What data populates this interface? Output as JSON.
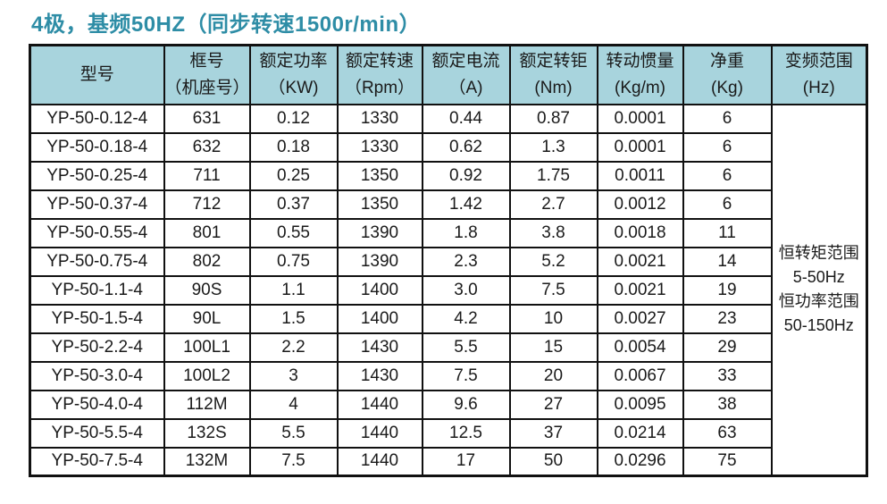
{
  "page_title": "4极，基频50HZ（同步转速1500r/min）",
  "colors": {
    "title_text": "#2e8da6",
    "header_background": "#a8d4dd",
    "table_border": "#111111",
    "body_text": "#1a1a1a"
  },
  "table": {
    "headers": [
      {
        "line1": "型号",
        "line2": ""
      },
      {
        "line1": "框号",
        "line2": "（机座号）"
      },
      {
        "line1": "额定功率",
        "line2": "（KW)"
      },
      {
        "line1": "额定转速",
        "line2": "（Rpm）"
      },
      {
        "line1": "额定电流",
        "line2": "（A)"
      },
      {
        "line1": "额定转钜",
        "line2": "(Nm)"
      },
      {
        "line1": "转动惯量",
        "line2": "(Kg/m)"
      },
      {
        "line1": "净重",
        "line2": "(Kg)"
      },
      {
        "line1": "变频范围",
        "line2": "(Hz)"
      }
    ],
    "rows": [
      [
        "YP-50-0.12-4",
        "631",
        "0.12",
        "1330",
        "0.44",
        "0.87",
        "0.0001",
        "6"
      ],
      [
        "YP-50-0.18-4",
        "632",
        "0.18",
        "1330",
        "0.62",
        "1.3",
        "0.0001",
        "6"
      ],
      [
        "YP-50-0.25-4",
        "711",
        "0.25",
        "1350",
        "0.92",
        "1.75",
        "0.0011",
        "6"
      ],
      [
        "YP-50-0.37-4",
        "712",
        "0.37",
        "1350",
        "1.42",
        "2.7",
        "0.0012",
        "6"
      ],
      [
        "YP-50-0.55-4",
        "801",
        "0.55",
        "1390",
        "1.8",
        "3.8",
        "0.0018",
        "11"
      ],
      [
        "YP-50-0.75-4",
        "802",
        "0.75",
        "1390",
        "2.3",
        "5.2",
        "0.0021",
        "14"
      ],
      [
        "YP-50-1.1-4",
        "90S",
        "1.1",
        "1400",
        "3.0",
        "7.5",
        "0.0021",
        "19"
      ],
      [
        "YP-50-1.5-4",
        "90L",
        "1.5",
        "1400",
        "4.2",
        "10",
        "0.0027",
        "23"
      ],
      [
        "YP-50-2.2-4",
        "100L1",
        "2.2",
        "1430",
        "5.5",
        "15",
        "0.0054",
        "29"
      ],
      [
        "YP-50-3.0-4",
        "100L2",
        "3",
        "1430",
        "7.5",
        "20",
        "0.0067",
        "33"
      ],
      [
        "YP-50-4.0-4",
        "112M",
        "4",
        "1440",
        "9.6",
        "27",
        "0.0095",
        "38"
      ],
      [
        "YP-50-5.5-4",
        "132S",
        "5.5",
        "1440",
        "12.5",
        "37",
        "0.0214",
        "63"
      ],
      [
        "YP-50-7.5-4",
        "132M",
        "7.5",
        "1440",
        "17",
        "50",
        "0.0296",
        "75"
      ]
    ],
    "freq_range_lines": [
      "恒转矩范围",
      "5-50Hz",
      "恒功率范围",
      "50-150Hz"
    ]
  }
}
